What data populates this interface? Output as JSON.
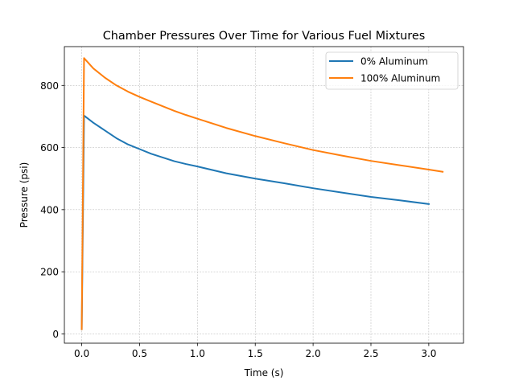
{
  "chart_data": {
    "type": "line",
    "title": "Chamber Pressures Over Time for Various Fuel Mixtures",
    "xlabel": "Time (s)",
    "ylabel": "Pressure (psi)",
    "xlim": [
      -0.15,
      3.3
    ],
    "ylim": [
      -30,
      925
    ],
    "xticks": [
      0.0,
      0.5,
      1.0,
      1.5,
      2.0,
      2.5,
      3.0
    ],
    "xtick_labels": [
      "0.0",
      "0.5",
      "1.0",
      "1.5",
      "2.0",
      "2.5",
      "3.0"
    ],
    "yticks": [
      0,
      200,
      400,
      600,
      800
    ],
    "ytick_labels": [
      "0",
      "200",
      "400",
      "600",
      "800"
    ],
    "grid": true,
    "legend_position": "upper right",
    "series": [
      {
        "name": "0% Aluminum",
        "color": "#1f77b4",
        "x": [
          0.0,
          0.02,
          0.1,
          0.2,
          0.3,
          0.4,
          0.5,
          0.6,
          0.7,
          0.8,
          0.9,
          1.0,
          1.25,
          1.5,
          1.75,
          2.0,
          2.25,
          2.5,
          2.75,
          3.0
        ],
        "y": [
          15,
          703,
          680,
          655,
          630,
          610,
          595,
          580,
          568,
          556,
          547,
          539,
          517,
          500,
          485,
          469,
          455,
          441,
          430,
          418
        ]
      },
      {
        "name": "100% Aluminum",
        "color": "#ff7f0e",
        "x": [
          0.0,
          0.02,
          0.1,
          0.2,
          0.3,
          0.4,
          0.5,
          0.6,
          0.7,
          0.8,
          0.9,
          1.0,
          1.25,
          1.5,
          1.75,
          2.0,
          2.25,
          2.5,
          2.75,
          3.0,
          3.12
        ],
        "y": [
          15,
          888,
          855,
          825,
          800,
          780,
          763,
          748,
          733,
          718,
          705,
          693,
          663,
          637,
          614,
          592,
          574,
          557,
          543,
          529,
          522
        ]
      }
    ]
  }
}
